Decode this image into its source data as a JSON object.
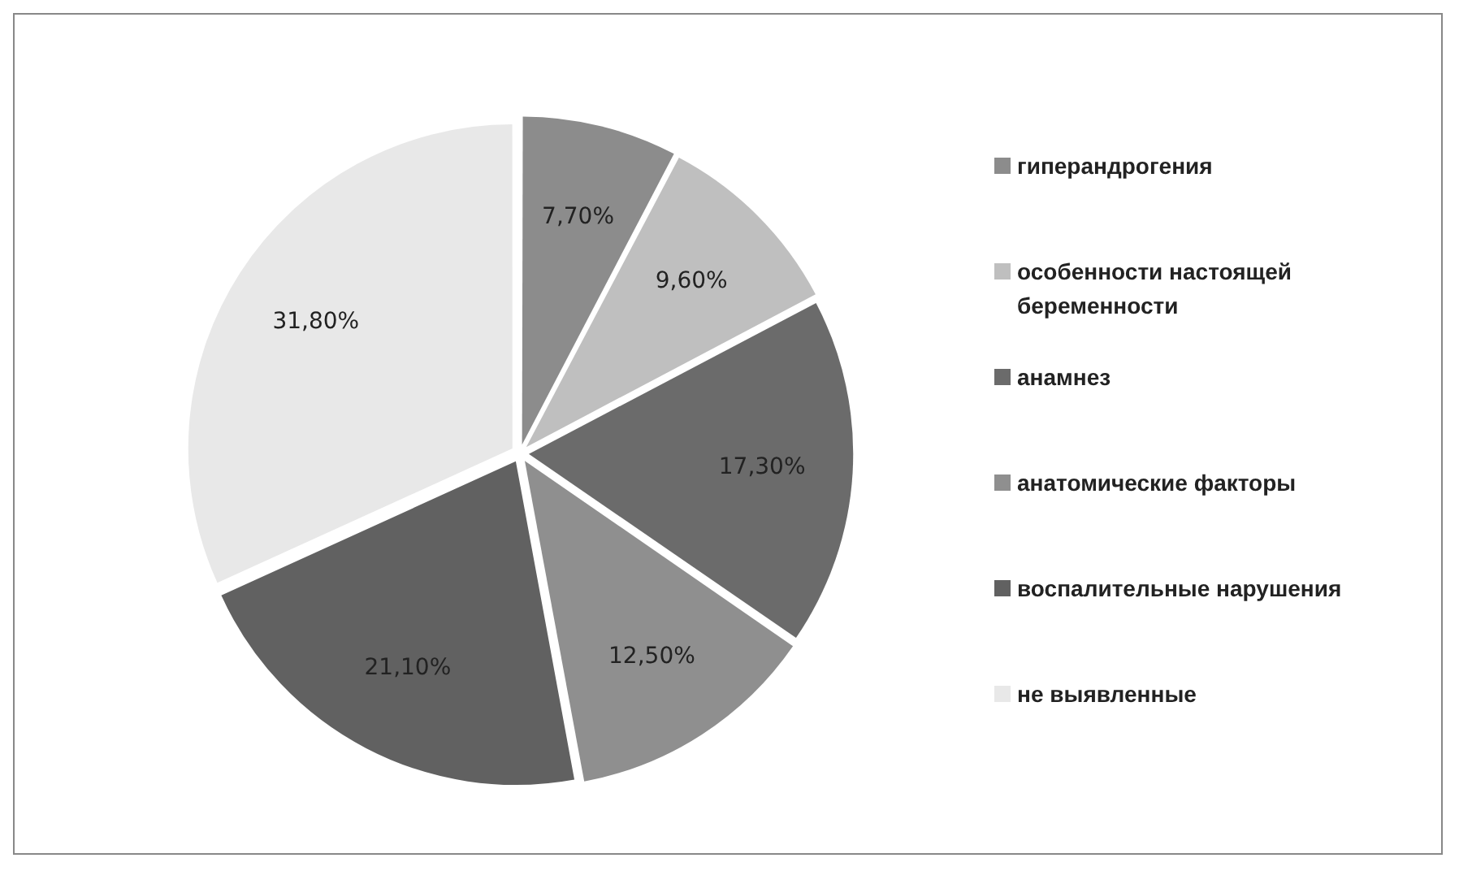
{
  "chart_data": {
    "type": "pie",
    "categories": [
      "гиперандрогения",
      "особенности настоящей беременности",
      "анамнез",
      "анатомические факторы",
      "воспалительные нарушения",
      "не выявленные"
    ],
    "values": [
      7.7,
      9.6,
      17.3,
      12.5,
      21.1,
      31.8
    ],
    "colors": [
      "#8c8c8c",
      "#bfbfbf",
      "#6b6b6b",
      "#8f8f8f",
      "#616161",
      "#e8e8e8"
    ],
    "value_labels": [
      "7,70%",
      "9,60%",
      "17,30%",
      "12,50%",
      "21,10%",
      "31,80%"
    ],
    "legend": "right"
  }
}
